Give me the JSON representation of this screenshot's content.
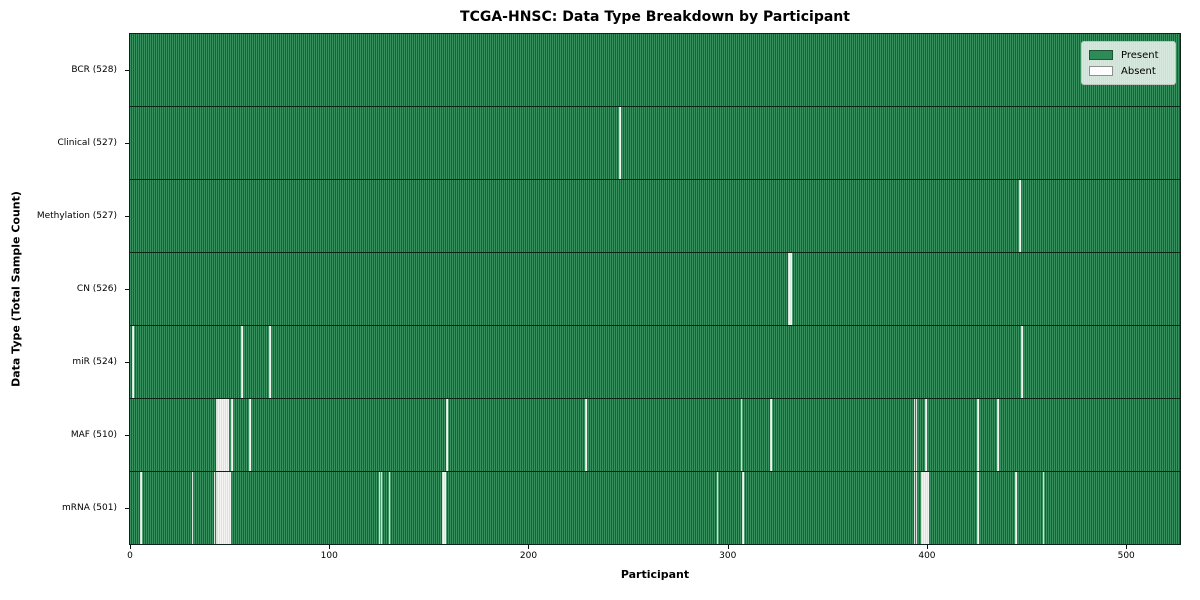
{
  "title": "TCGA-HNSC: Data Type Breakdown by Participant",
  "axes": {
    "x_title": "Participant",
    "y_title": "Data Type (Total Sample Count)"
  },
  "legend": {
    "present_label": "Present",
    "absent_label": "Absent"
  },
  "colors": {
    "present": "#2e8b57",
    "mesh_light": "#3a9160",
    "mesh_dark": "#225c3d",
    "absent": "#f3f3f1",
    "row_separator": "#0f2316",
    "legend_bg": "rgba(255,255,255,0.8)",
    "legend_border": "#c4c4c4"
  },
  "chart_data": {
    "type": "heatmap",
    "title": "TCGA-HNSC: Data Type Breakdown by Participant",
    "xlabel": "Participant",
    "ylabel": "Data Type (Total Sample Count)",
    "legend_entries": [
      "Present",
      "Absent"
    ],
    "legend_position": "upper right",
    "grid": false,
    "n_participants": 528,
    "x_range": [
      0,
      528
    ],
    "x_ticks": [
      0,
      100,
      200,
      300,
      400,
      500
    ],
    "rows": [
      {
        "label": "BCR (528)",
        "total": 528,
        "absent_indices": []
      },
      {
        "label": "Clinical (527)",
        "total": 527,
        "absent_indices": [
          246
        ]
      },
      {
        "label": "Methylation (527)",
        "total": 527,
        "absent_indices": [
          447
        ]
      },
      {
        "label": "CN (526)",
        "total": 526,
        "absent_indices": [
          331,
          332
        ]
      },
      {
        "label": "miR (524)",
        "total": 524,
        "absent_indices": [
          1,
          56,
          70,
          448
        ]
      },
      {
        "label": "MAF (510)",
        "total": 510,
        "absent_indices": [
          43,
          44,
          45,
          46,
          47,
          48,
          49,
          51,
          60,
          159,
          229,
          307,
          322,
          394,
          395,
          400,
          426,
          436
        ]
      },
      {
        "label": "mRNA (501)",
        "total": 501,
        "absent_indices": [
          5,
          31,
          42,
          43,
          44,
          45,
          46,
          47,
          48,
          49,
          50,
          125,
          126,
          130,
          157,
          158,
          295,
          308,
          394,
          395,
          398,
          399,
          400,
          401,
          426,
          445,
          459
        ]
      }
    ]
  }
}
